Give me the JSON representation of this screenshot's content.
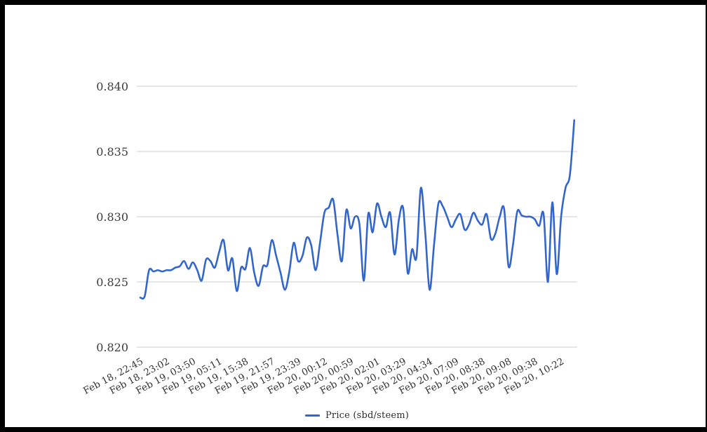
{
  "page": {
    "background_color": "#ffffff",
    "frame_border_color": "#000000"
  },
  "chart_data": {
    "type": "line",
    "title": "",
    "grid": true,
    "gridline_color": "#cccccc",
    "axis_label_color": "#3c3c3c",
    "x_axis": {
      "tick_labels": [
        "Feb 18, 22:45",
        "Feb 18, 23:02",
        "Feb 19, 03:50",
        "Feb 19, 05:11",
        "Feb 19, 15:38",
        "Feb 19, 21:57",
        "Feb 19, 23:39",
        "Feb 20, 00:12",
        "Feb 20, 00:59",
        "Feb 20, 02:01",
        "Feb 20, 03:29",
        "Feb 20, 04:34",
        "Feb 20, 07:09",
        "Feb 20, 08:38",
        "Feb 20, 09:08",
        "Feb 20, 09:38",
        "Feb 20, 10:22"
      ],
      "points_per_tick": 6,
      "label_rotation_deg": -28
    },
    "y_axis": {
      "range": [
        0.82,
        0.84
      ],
      "ticks": [
        {
          "value": 0.84,
          "label": "0.840"
        },
        {
          "value": 0.835,
          "label": "0.835"
        },
        {
          "value": 0.83,
          "label": "0.830"
        },
        {
          "value": 0.825,
          "label": "0.825"
        },
        {
          "value": 0.82,
          "label": "0.820"
        }
      ]
    },
    "series": [
      {
        "name": "Price (sbd/steem)",
        "color": "#3366cc",
        "values": [
          0.8238,
          0.8239,
          0.8259,
          0.8258,
          0.8259,
          0.8258,
          0.8259,
          0.8259,
          0.8261,
          0.8262,
          0.8266,
          0.826,
          0.8265,
          0.8259,
          0.8251,
          0.8267,
          0.8266,
          0.8261,
          0.8273,
          0.8282,
          0.8259,
          0.8268,
          0.8243,
          0.8261,
          0.826,
          0.8276,
          0.8257,
          0.8247,
          0.8262,
          0.8263,
          0.8282,
          0.827,
          0.8257,
          0.8244,
          0.8258,
          0.828,
          0.8266,
          0.827,
          0.8284,
          0.8278,
          0.8259,
          0.828,
          0.8303,
          0.8307,
          0.8313,
          0.8286,
          0.8266,
          0.8305,
          0.8291,
          0.83,
          0.8294,
          0.8251,
          0.8302,
          0.8288,
          0.831,
          0.83,
          0.8292,
          0.8303,
          0.8271,
          0.8298,
          0.8306,
          0.8257,
          0.8275,
          0.8269,
          0.8322,
          0.8288,
          0.8244,
          0.8278,
          0.831,
          0.8308,
          0.83,
          0.8292,
          0.8298,
          0.8302,
          0.829,
          0.8294,
          0.8303,
          0.8297,
          0.8294,
          0.8302,
          0.8283,
          0.8287,
          0.83,
          0.8306,
          0.8262,
          0.8278,
          0.8304,
          0.8301,
          0.83,
          0.83,
          0.8298,
          0.8293,
          0.8302,
          0.825,
          0.8311,
          0.8256,
          0.83,
          0.8322,
          0.8332,
          0.8374
        ]
      }
    ],
    "legend": {
      "position": "bottom-center",
      "label": "Price (sbd/steem)",
      "swatch_color": "#3366cc"
    }
  }
}
